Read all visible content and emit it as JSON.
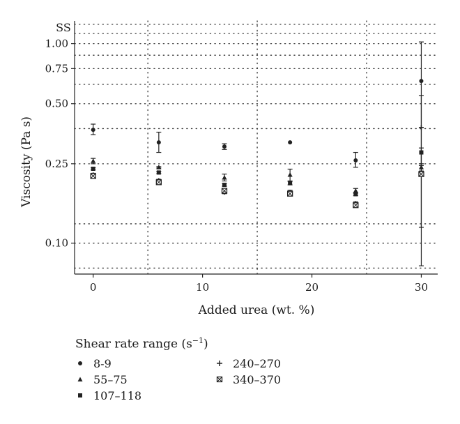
{
  "chart_data": {
    "type": "scatter",
    "title": "SS",
    "xlabel": "Added urea (wt. %)",
    "ylabel": "Viscosity (Pa s)",
    "x_scale": "linear",
    "y_scale": "log",
    "xlim": [
      -1.7,
      31.5
    ],
    "ylim": [
      0.07,
      1.3
    ],
    "x_ticks": [
      0,
      10,
      20,
      30
    ],
    "x_tick_labels": [
      "0",
      "10",
      "20",
      "30"
    ],
    "y_ticks": [
      0.1,
      0.25,
      0.5,
      0.75,
      1.0
    ],
    "y_tick_labels": [
      "0.10",
      "0.25",
      "0.50",
      "0.75",
      "1.00"
    ],
    "grid": "dotted",
    "legend_title": "Shear rate range (s",
    "legend_title_sup": "−1",
    "legend_title_close": ")",
    "legend_placement": "below",
    "series": [
      {
        "name": "8-9",
        "marker": "circle",
        "points": [
          {
            "x": 0,
            "y": 0.37,
            "lo": 0.35,
            "hi": 0.395
          },
          {
            "x": 6,
            "y": 0.32,
            "lo": 0.285,
            "hi": 0.36
          },
          {
            "x": 12,
            "y": 0.305,
            "lo": 0.295,
            "hi": 0.315
          },
          {
            "x": 18,
            "y": 0.32,
            "lo": 0.32,
            "hi": 0.32
          },
          {
            "x": 24,
            "y": 0.26,
            "lo": 0.24,
            "hi": 0.285
          },
          {
            "x": 30,
            "y": 0.65,
            "lo": 0.077,
            "hi": 1.02
          }
        ]
      },
      {
        "name": "55–75",
        "marker": "triangle",
        "points": [
          {
            "x": 0,
            "y": 0.258,
            "lo": 0.25,
            "hi": 0.266
          },
          {
            "x": 6,
            "y": 0.24,
            "lo": 0.238,
            "hi": 0.242
          },
          {
            "x": 12,
            "y": 0.213,
            "lo": 0.205,
            "hi": 0.222
          },
          {
            "x": 18,
            "y": 0.22,
            "lo": 0.205,
            "hi": 0.235
          },
          {
            "x": 24,
            "y": 0.183,
            "lo": 0.178,
            "hi": 0.188
          },
          {
            "x": 30,
            "y": 0.24,
            "lo": 0.23,
            "hi": 0.25
          }
        ]
      },
      {
        "name": "107–118",
        "marker": "square",
        "points": [
          {
            "x": 0,
            "y": 0.236,
            "lo": 0.233,
            "hi": 0.239
          },
          {
            "x": 6,
            "y": 0.226,
            "lo": 0.223,
            "hi": 0.229
          },
          {
            "x": 12,
            "y": 0.196,
            "lo": 0.193,
            "hi": 0.199
          },
          {
            "x": 18,
            "y": 0.2,
            "lo": 0.196,
            "hi": 0.204
          },
          {
            "x": 24,
            "y": 0.176,
            "lo": 0.173,
            "hi": 0.179
          },
          {
            "x": 30,
            "y": 0.285,
            "lo": 0.245,
            "hi": 0.3
          }
        ]
      },
      {
        "name": "240–270",
        "marker": "plus",
        "points": [
          {
            "x": 0,
            "y": 0.22,
            "lo": 0.216,
            "hi": 0.224
          },
          {
            "x": 6,
            "y": 0.206,
            "lo": 0.203,
            "hi": 0.209
          },
          {
            "x": 12,
            "y": 0.18,
            "lo": 0.177,
            "hi": 0.183
          },
          {
            "x": 18,
            "y": 0.18,
            "lo": 0.176,
            "hi": 0.184
          },
          {
            "x": 24,
            "y": 0.158,
            "lo": 0.155,
            "hi": 0.161
          },
          {
            "x": 30,
            "y": 0.38,
            "lo": 0.12,
            "hi": 0.55
          }
        ]
      },
      {
        "name": "340–370",
        "marker": "boxed-x",
        "points": [
          {
            "x": 0,
            "y": 0.217,
            "lo": 0.214,
            "hi": 0.22
          },
          {
            "x": 6,
            "y": 0.202,
            "lo": 0.199,
            "hi": 0.205
          },
          {
            "x": 12,
            "y": 0.183,
            "lo": 0.18,
            "hi": 0.186
          },
          {
            "x": 18,
            "y": 0.177,
            "lo": 0.174,
            "hi": 0.18
          },
          {
            "x": 24,
            "y": 0.155,
            "lo": 0.152,
            "hi": 0.158
          },
          {
            "x": 30,
            "y": 0.222,
            "lo": 0.217,
            "hi": 0.227
          }
        ]
      }
    ]
  }
}
